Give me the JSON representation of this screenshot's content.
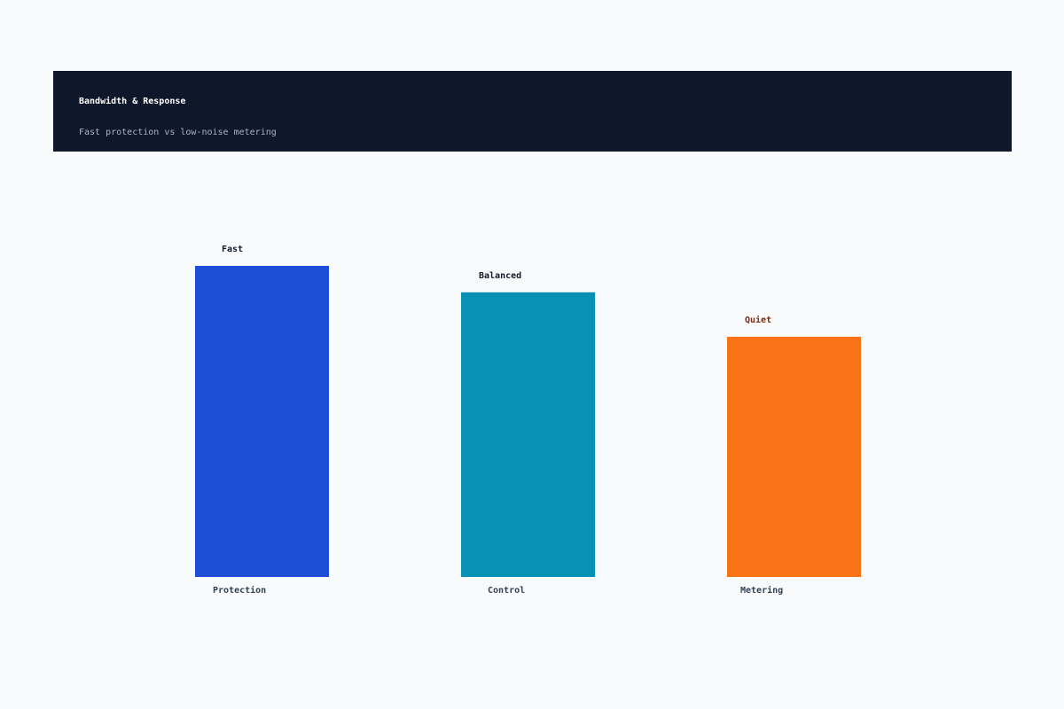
{
  "header": {
    "title": "Bandwidth & Response",
    "subtitle": "Fast protection vs low-noise metering"
  },
  "chart_data": {
    "type": "bar",
    "title": "Bandwidth & Response",
    "subtitle": "Fast protection vs low-noise metering",
    "categories": [
      "Protection",
      "Control",
      "Metering"
    ],
    "values": [
      100,
      91.5,
      77.2
    ],
    "data_labels": [
      "Fast",
      "Balanced",
      "Quiet"
    ],
    "ylim": [
      0,
      100
    ],
    "grid": false,
    "legend": "none",
    "colors": [
      "#1d4ed8",
      "#0891b2",
      "#f97316"
    ],
    "label_colors": [
      "#111827",
      "#111827",
      "#7c2d12"
    ]
  }
}
